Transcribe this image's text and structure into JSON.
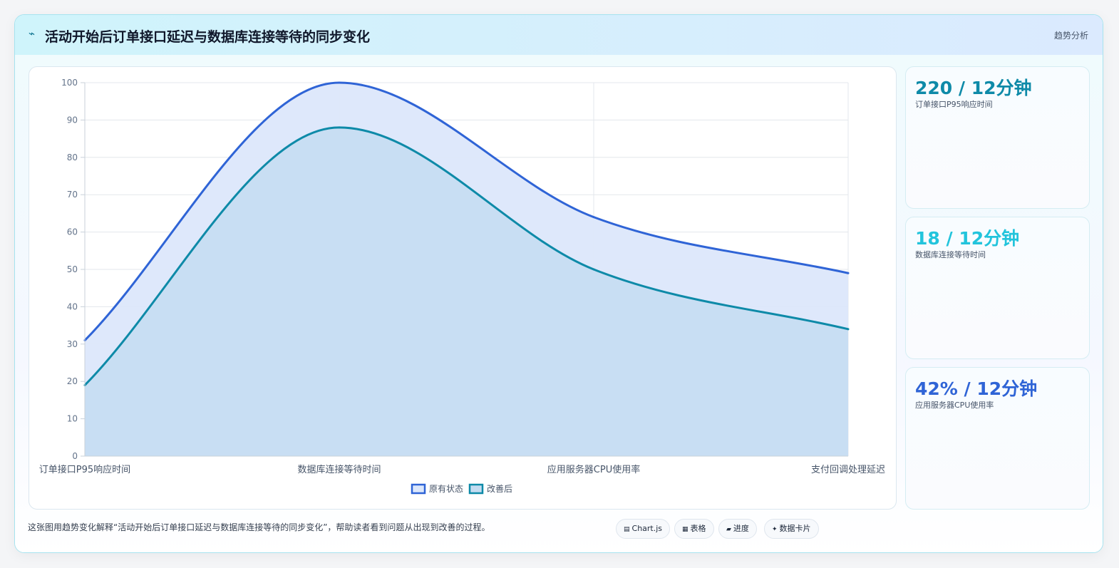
{
  "header": {
    "title_icon": "⌁",
    "title": "活动开始后订单接口延迟与数据库连接等待的同步变化",
    "tag": "趋势分析"
  },
  "chart_data": {
    "type": "area",
    "categories": [
      "订单接口P95响应时间",
      "数据库连接等待时间",
      "应用服务器CPU使用率",
      "支付回调处理延迟"
    ],
    "series": [
      {
        "name": "原有状态",
        "values": [
          31,
          100,
          64,
          49
        ],
        "color": "#2f64d6",
        "fill": "#dce7fb"
      },
      {
        "name": "改善后",
        "values": [
          19,
          88,
          50,
          34
        ],
        "color": "#0e8aa8",
        "fill": "#c4dcf1"
      }
    ],
    "ylim": [
      0,
      100
    ],
    "yticks": [
      "0",
      "10",
      "20",
      "30",
      "40",
      "50",
      "60",
      "70",
      "80",
      "90",
      "100"
    ],
    "grid": true,
    "legend": "bottom"
  },
  "kpis": [
    {
      "value": "220 / 12分钟",
      "label": "订单接口P95响应时间",
      "color": "#0e8aa8"
    },
    {
      "value": "18 / 12分钟",
      "label": "数据库连接等待时间",
      "color": "#22c4dc"
    },
    {
      "value": "42% / 12分钟",
      "label": "应用服务器CPU使用率",
      "color": "#2f64d6"
    }
  ],
  "footer": {
    "note": "这张图用趋势变化解释“活动开始后订单接口延迟与数据库连接等待的同步变化”，帮助读者看到问题从出现到改善的过程。",
    "chips": [
      {
        "icon": "▤",
        "label": "Chart.js"
      },
      {
        "icon": "▦",
        "label": "表格"
      },
      {
        "icon": "▰",
        "label": "进度"
      },
      {
        "icon": "✦",
        "label": "数据卡片"
      }
    ]
  }
}
